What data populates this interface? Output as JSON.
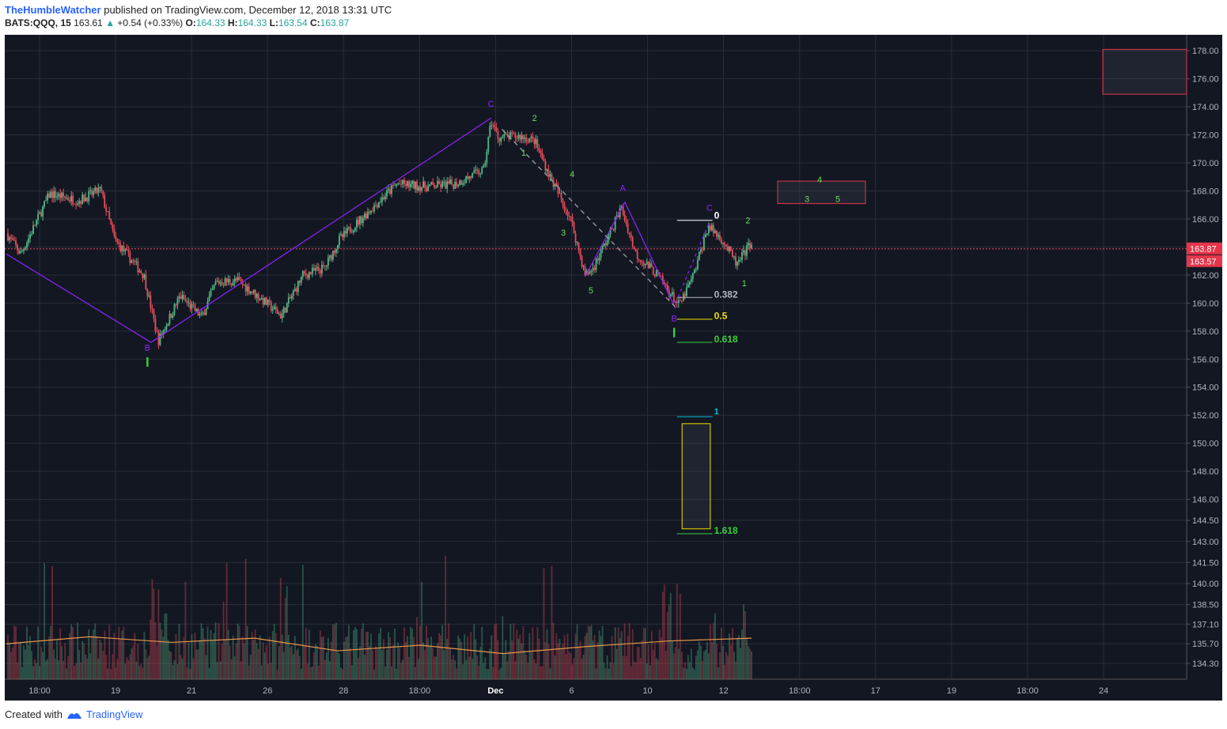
{
  "header": {
    "author": "TheHumbleWatcher",
    "published_text": "published on TradingView.com, December 12, 2018 13:31 UTC",
    "symbol": "BATS:QQQ, 15",
    "last_price": "163.61",
    "change": "+0.54 (+0.33%)",
    "open_label": "O:",
    "open": "164.33",
    "high_label": "H:",
    "high": "164.33",
    "low_label": "L:",
    "low": "163.54",
    "close_label": "C:",
    "close": "163.87"
  },
  "footer": {
    "created_with": "Created with",
    "brand": "TradingView"
  },
  "colors": {
    "background": "#131722",
    "grid": "#2a2e39",
    "up": "#53b987",
    "down": "#eb4d5c",
    "wave_line": "#8e24ff",
    "vol_ma": "#e8974a",
    "text": "#b2b5be"
  },
  "chart_data": {
    "type": "candlestick",
    "ylim": [
      133.4,
      178.8
    ],
    "y_ticks": [
      "178.00",
      "176.00",
      "174.00",
      "172.00",
      "170.00",
      "168.00",
      "166.00",
      "164.00",
      "162.00",
      "160.00",
      "158.00",
      "156.00",
      "154.00",
      "152.00",
      "150.00",
      "148.00",
      "146.00",
      "144.50",
      "143.00",
      "141.50",
      "140.00",
      "138.50",
      "137.10",
      "135.70",
      "134.30"
    ],
    "x_ticks": [
      "18:00",
      "19",
      "21",
      "26",
      "28",
      "18:00",
      "Dec",
      "6",
      "10",
      "12",
      "18:00",
      "17",
      "19",
      "18:00",
      "24"
    ],
    "x_ticks_bold": "Dec",
    "price_markers": [
      "163.87",
      "163.57"
    ],
    "current_price": 163.87,
    "price_path": [
      {
        "t": 0,
        "p": 165.0
      },
      {
        "t": 2,
        "p": 163.5
      },
      {
        "t": 6,
        "p": 167.8
      },
      {
        "t": 10,
        "p": 167.3
      },
      {
        "t": 13,
        "p": 168.1
      },
      {
        "t": 15,
        "p": 164.5
      },
      {
        "t": 19,
        "p": 162.0
      },
      {
        "t": 21,
        "p": 157.3
      },
      {
        "t": 24,
        "p": 160.5
      },
      {
        "t": 27,
        "p": 159.0
      },
      {
        "t": 29,
        "p": 161.5
      },
      {
        "t": 32,
        "p": 161.6
      },
      {
        "t": 35,
        "p": 160.4
      },
      {
        "t": 38,
        "p": 159.1
      },
      {
        "t": 41,
        "p": 162.0
      },
      {
        "t": 44,
        "p": 162.5
      },
      {
        "t": 46,
        "p": 164.5
      },
      {
        "t": 50,
        "p": 166.5
      },
      {
        "t": 54,
        "p": 168.5
      },
      {
        "t": 58,
        "p": 168.3
      },
      {
        "t": 62,
        "p": 168.5
      },
      {
        "t": 66,
        "p": 169.5
      },
      {
        "t": 67,
        "p": 173.0
      },
      {
        "t": 68,
        "p": 171.8
      },
      {
        "t": 71,
        "p": 171.9
      },
      {
        "t": 73,
        "p": 171.6
      },
      {
        "t": 75,
        "p": 169.2
      },
      {
        "t": 78,
        "p": 166.0
      },
      {
        "t": 80,
        "p": 162.0
      },
      {
        "t": 81,
        "p": 162.4
      },
      {
        "t": 83,
        "p": 164.5
      },
      {
        "t": 85,
        "p": 166.8
      },
      {
        "t": 87,
        "p": 163.5
      },
      {
        "t": 90,
        "p": 162.0
      },
      {
        "t": 93,
        "p": 159.8
      },
      {
        "t": 95,
        "p": 162.0
      },
      {
        "t": 97,
        "p": 165.5
      },
      {
        "t": 99,
        "p": 164.5
      },
      {
        "t": 101,
        "p": 162.7
      },
      {
        "t": 103,
        "p": 164.4
      }
    ],
    "volume_ma": [
      135.7,
      136.2,
      135.8,
      136.1,
      135.2,
      135.6,
      135.0,
      135.5,
      135.9,
      136.1
    ],
    "waves_main": [
      {
        "t": 0,
        "p": 163.5
      },
      {
        "t": 20,
        "p": 157.2
      },
      {
        "t": 67,
        "p": 173.2
      }
    ],
    "waves_abc": [
      {
        "t": 80,
        "p": 161.9
      },
      {
        "t": 85.5,
        "p": 167.2
      },
      {
        "t": 92.5,
        "p": 159.6
      }
    ],
    "wave_labels": [
      {
        "text": "B",
        "t": 19.5,
        "p": 156.6,
        "color": "#8e24ff"
      },
      {
        "text": "C",
        "t": 67.0,
        "p": 174.0,
        "color": "#8e24ff"
      },
      {
        "text": "A",
        "t": 85.2,
        "p": 168.0,
        "color": "#8e24ff"
      },
      {
        "text": "B",
        "t": 92.3,
        "p": 158.7,
        "color": "#8e24ff"
      },
      {
        "text": "C",
        "t": 97.2,
        "p": 166.6,
        "color": "#8e24ff"
      },
      {
        "text": "1",
        "t": 71.5,
        "p": 170.5,
        "color": "#66e05a"
      },
      {
        "text": "2",
        "t": 73.0,
        "p": 173.0,
        "color": "#66e05a"
      },
      {
        "text": "3",
        "t": 77.0,
        "p": 164.8,
        "color": "#66e05a"
      },
      {
        "text": "4",
        "t": 78.2,
        "p": 169.0,
        "color": "#66e05a"
      },
      {
        "text": "5",
        "t": 80.8,
        "p": 160.7,
        "color": "#66e05a"
      },
      {
        "text": "1",
        "t": 102.0,
        "p": 161.2,
        "color": "#66e05a"
      },
      {
        "text": "2",
        "t": 102.5,
        "p": 165.7,
        "color": "#66e05a"
      }
    ],
    "fib_levels": [
      {
        "label": "0",
        "price": 165.9,
        "color": "#ffffff"
      },
      {
        "label": "0.382",
        "price": 160.4,
        "color": "#b2b5be"
      },
      {
        "label": "0.5",
        "price": 158.85,
        "color": "#f0e000"
      },
      {
        "label": "0.618",
        "price": 157.2,
        "color": "#39d13d"
      },
      {
        "label": "1",
        "price": 151.9,
        "color": "#00bcd4"
      },
      {
        "label": "1.618",
        "price": 143.55,
        "color": "#39d13d"
      }
    ],
    "target_box_labels": [
      "4",
      "3",
      "5"
    ]
  }
}
